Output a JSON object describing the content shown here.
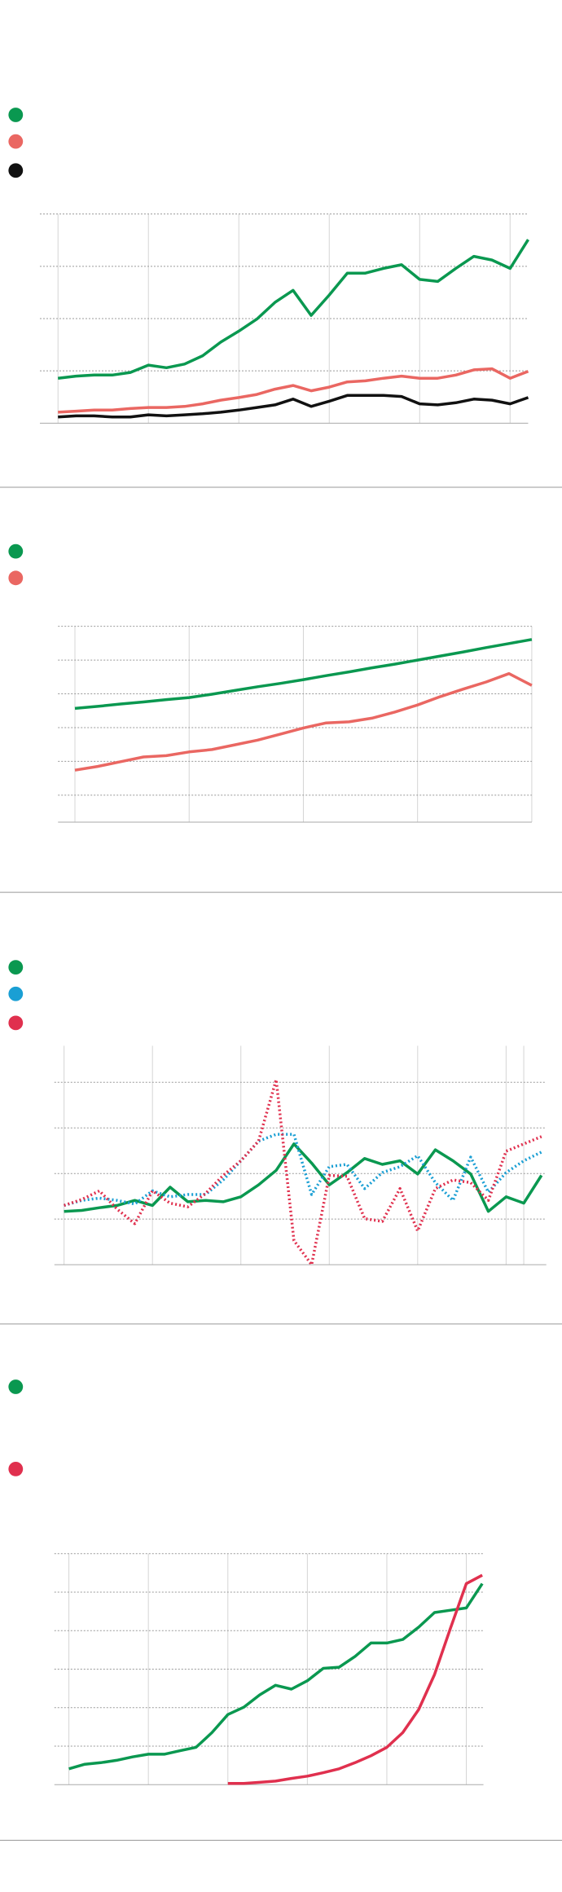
{
  "chart_data": [
    {
      "type": "line",
      "x": [
        0,
        1,
        2,
        3,
        4,
        5,
        6,
        7,
        8,
        9,
        10,
        11,
        12,
        13,
        14,
        15,
        16,
        17,
        18,
        19,
        20,
        21,
        22,
        23,
        24,
        25,
        26
      ],
      "xlim": [
        0,
        26
      ],
      "xticks": [
        0,
        5,
        10,
        15,
        20,
        25
      ],
      "ylim": [
        0,
        4
      ],
      "yticks": [
        1,
        2,
        3,
        4
      ],
      "grid": true,
      "series": [
        {
          "color": "#0a9850",
          "dash": "solid",
          "values": [
            0.86,
            0.9,
            0.92,
            0.92,
            0.97,
            1.11,
            1.06,
            1.13,
            1.29,
            1.55,
            1.76,
            1.99,
            2.31,
            2.54,
            2.06,
            2.45,
            2.87,
            2.87,
            2.96,
            3.03,
            2.75,
            2.71,
            2.96,
            3.19,
            3.12,
            2.96,
            3.51
          ]
        },
        {
          "color": "#ea6762",
          "dash": "solid",
          "values": [
            0.21,
            0.23,
            0.25,
            0.25,
            0.28,
            0.3,
            0.3,
            0.32,
            0.37,
            0.44,
            0.49,
            0.55,
            0.65,
            0.72,
            0.62,
            0.69,
            0.79,
            0.81,
            0.86,
            0.9,
            0.86,
            0.86,
            0.92,
            1.02,
            1.04,
            0.86,
            0.99
          ]
        },
        {
          "color": "#111111",
          "dash": "solid",
          "values": [
            0.12,
            0.14,
            0.14,
            0.12,
            0.12,
            0.16,
            0.14,
            0.16,
            0.18,
            0.21,
            0.25,
            0.3,
            0.35,
            0.46,
            0.32,
            0.42,
            0.53,
            0.53,
            0.53,
            0.51,
            0.37,
            0.35,
            0.39,
            0.46,
            0.44,
            0.37,
            0.49
          ]
        }
      ]
    },
    {
      "type": "line",
      "x": [
        0,
        1,
        2,
        3,
        4,
        5,
        6,
        7,
        8,
        9,
        10,
        11,
        12,
        13,
        14,
        15,
        16,
        17,
        18,
        19,
        20
      ],
      "xlim": [
        0,
        20
      ],
      "xticks": [
        0,
        5,
        10,
        15,
        20
      ],
      "ylim": [
        0.2,
        6
      ],
      "yticks": [
        1,
        2,
        3,
        4,
        5,
        6
      ],
      "grid": true,
      "series": [
        {
          "color": "#0a9850",
          "dash": "solid",
          "values": [
            3.57,
            3.63,
            3.7,
            3.76,
            3.83,
            3.89,
            3.99,
            4.1,
            4.21,
            4.31,
            4.42,
            4.54,
            4.65,
            4.77,
            4.88,
            5.0,
            5.12,
            5.24,
            5.37,
            5.49,
            5.61
          ]
        },
        {
          "color": "#ea6762",
          "dash": "solid",
          "values": [
            1.74,
            1.85,
            1.99,
            2.13,
            2.17,
            2.28,
            2.35,
            2.49,
            2.63,
            2.81,
            2.99,
            3.14,
            3.17,
            3.28,
            3.46,
            3.67,
            3.92,
            4.14,
            4.35,
            4.6,
            4.25
          ]
        }
      ]
    },
    {
      "type": "line",
      "x": [
        0,
        1,
        2,
        3,
        4,
        5,
        6,
        7,
        8,
        9,
        10,
        11,
        12,
        13,
        14,
        15,
        16,
        17,
        18,
        19,
        20,
        21,
        22,
        23,
        24,
        25,
        26,
        27
      ],
      "xlim": [
        0,
        27
      ],
      "xticks": [
        0,
        5,
        10,
        15,
        20,
        25,
        26
      ],
      "ylim": [
        0,
        4.8
      ],
      "yticks": [
        1,
        2,
        3,
        4
      ],
      "grid": true,
      "series": [
        {
          "color": "#0a9850",
          "dash": "solid",
          "values": [
            1.17,
            1.19,
            1.25,
            1.3,
            1.41,
            1.3,
            1.7,
            1.38,
            1.41,
            1.38,
            1.49,
            1.75,
            2.07,
            2.65,
            2.23,
            1.75,
            2.02,
            2.33,
            2.2,
            2.28,
            1.99,
            2.52,
            2.28,
            1.99,
            1.17,
            1.49,
            1.35,
            1.96
          ]
        },
        {
          "color": "#1a9fd4",
          "dash": "dotted",
          "values": [
            1.3,
            1.41,
            1.46,
            1.41,
            1.33,
            1.62,
            1.49,
            1.54,
            1.54,
            1.86,
            2.28,
            2.71,
            2.86,
            2.86,
            1.54,
            2.15,
            2.2,
            1.67,
            2.02,
            2.15,
            2.39,
            1.8,
            1.41,
            2.36,
            1.59,
            2.02,
            2.28,
            2.47
          ]
        },
        {
          "color": "#e0304e",
          "dash": "dotted",
          "values": [
            1.3,
            1.43,
            1.62,
            1.22,
            0.9,
            1.62,
            1.35,
            1.27,
            1.56,
            1.96,
            2.28,
            2.71,
            4.06,
            0.53,
            0,
            1.96,
            1.94,
            1.01,
            0.95,
            1.67,
            0.74,
            1.67,
            1.86,
            1.8,
            1.41,
            2.49,
            2.65,
            2.81
          ]
        }
      ]
    },
    {
      "type": "line",
      "x": [
        0,
        1,
        2,
        3,
        4,
        5,
        6,
        7,
        8,
        9,
        10,
        11,
        12,
        13,
        14,
        15,
        16,
        17,
        18,
        19,
        20,
        21,
        22,
        23,
        24,
        25,
        26
      ],
      "xlim": [
        0,
        26
      ],
      "xticks": [
        0,
        5,
        10,
        15,
        20,
        25
      ],
      "ylim": [
        0,
        6
      ],
      "yticks": [
        1,
        2,
        3,
        4,
        5,
        6
      ],
      "grid": true,
      "series": [
        {
          "color": "#0a9850",
          "dash": "solid",
          "values": [
            0.41,
            0.53,
            0.57,
            0.63,
            0.72,
            0.79,
            0.79,
            0.88,
            0.97,
            1.35,
            1.82,
            2.01,
            2.33,
            2.58,
            2.48,
            2.7,
            3.02,
            3.05,
            3.33,
            3.68,
            3.68,
            3.77,
            4.09,
            4.47,
            4.53,
            4.59,
            5.22
          ]
        },
        {
          "color": "#e0304e",
          "dash": "solid",
          "values": [
            null,
            null,
            null,
            null,
            null,
            null,
            null,
            null,
            null,
            null,
            0.03,
            0.03,
            0.06,
            0.09,
            0.16,
            0.22,
            0.31,
            0.41,
            0.57,
            0.75,
            0.97,
            1.35,
            1.95,
            2.86,
            4.06,
            5.22,
            5.44
          ]
        }
      ]
    }
  ]
}
